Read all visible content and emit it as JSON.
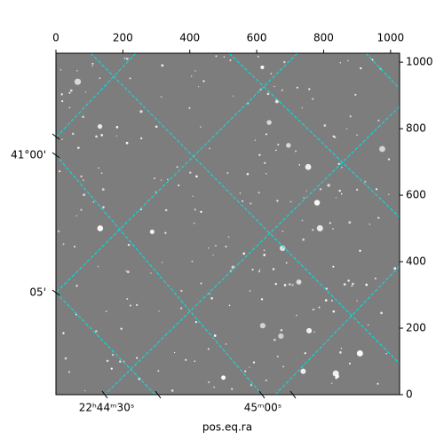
{
  "chart_data": {
    "type": "image",
    "xlabel": "pos.eq.ra",
    "xlim": [
      0,
      1027
    ],
    "xticks": [
      0,
      200,
      400,
      600,
      800,
      1000
    ],
    "ylim": [
      0,
      1027
    ],
    "yticks": [
      0,
      200,
      400,
      600,
      800,
      1000
    ],
    "world_xticks": [
      "22ʰ44ᵐ30ˢ",
      "45ᵐ00ˢ"
    ],
    "world_yticks": [
      "41°00'",
      "05'"
    ],
    "grid_color": "#00e5e5"
  }
}
